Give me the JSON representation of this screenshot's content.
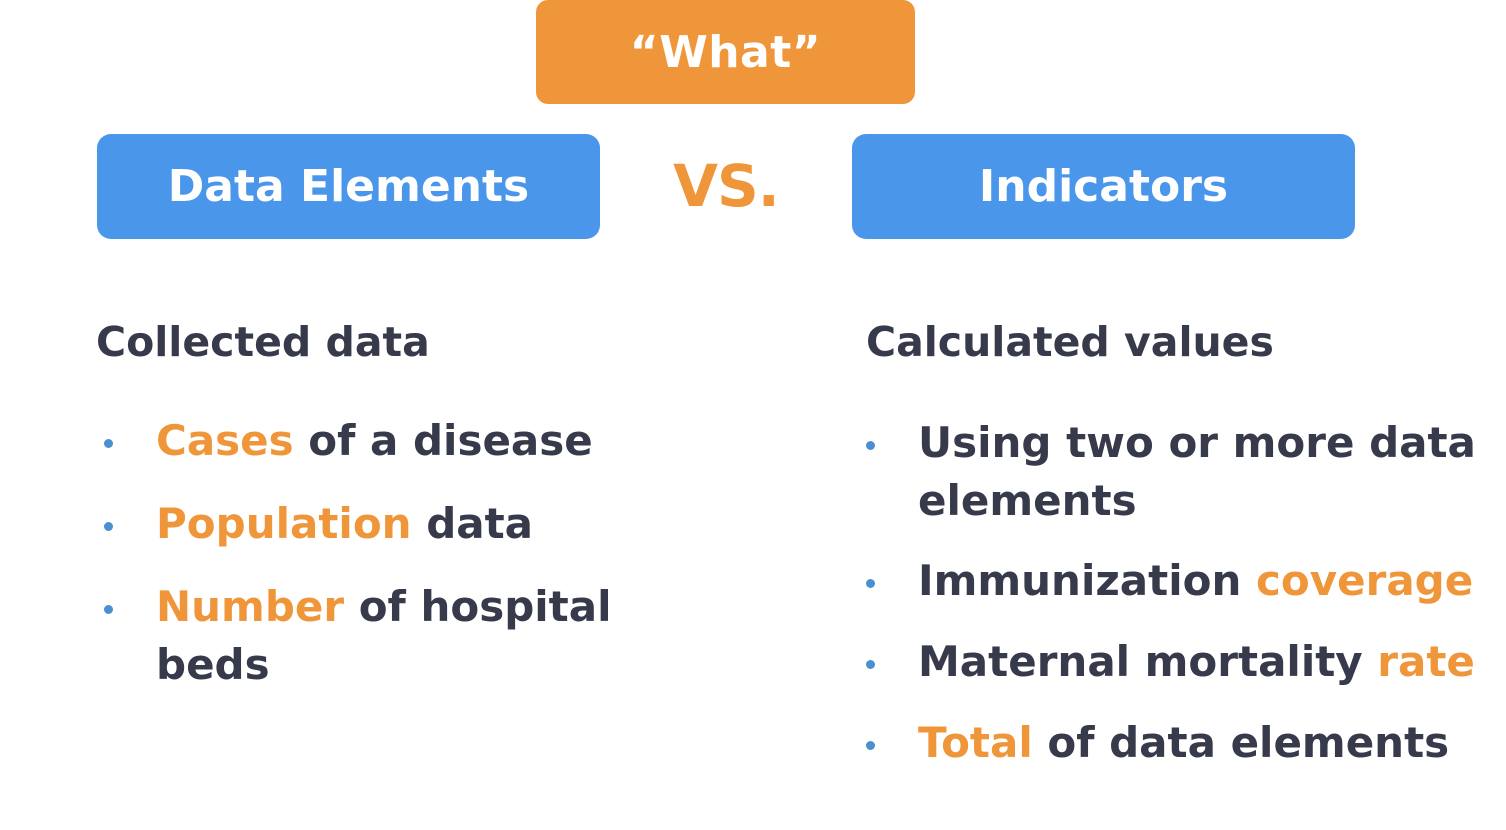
{
  "colors": {
    "orange": "#f0963a",
    "blue": "#4a96ea",
    "dark_text": "#363a4b",
    "bullet": "#4a8fd0",
    "white": "#ffffff"
  },
  "top_label": "“What”",
  "vs_label": "VS.",
  "left": {
    "header": "Data Elements",
    "heading": "Collected data",
    "items": [
      {
        "highlight": "Cases",
        "rest": " of a disease"
      },
      {
        "highlight": "Population",
        "rest": " data"
      },
      {
        "highlight": "Number",
        "rest": " of hospital beds"
      }
    ]
  },
  "right": {
    "header": "Indicators",
    "heading": "Calculated values",
    "items": [
      {
        "text": "Using two or more data elements"
      },
      {
        "text": "Immunization ",
        "highlight": "coverage"
      },
      {
        "text": "Maternal mortality ",
        "highlight": "rate"
      },
      {
        "highlight": "Total",
        "rest": " of data elements"
      }
    ]
  }
}
